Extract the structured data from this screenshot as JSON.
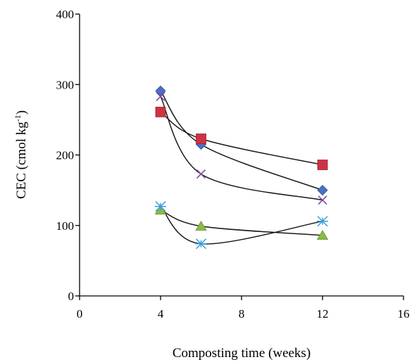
{
  "chart_data": {
    "type": "scatter",
    "title": "",
    "xlabel": "Composting time (weeks)",
    "ylabel_main": "CEC (cmol kg",
    "ylabel_sup": "-1",
    "ylabel_close": ")",
    "xlim": [
      0,
      16
    ],
    "ylim": [
      0,
      400
    ],
    "xticks": [
      0,
      4,
      8,
      12,
      16
    ],
    "yticks": [
      0,
      100,
      200,
      300,
      400
    ],
    "grid": false,
    "legend": "none",
    "x": [
      4,
      6,
      12
    ],
    "series": [
      {
        "marker": "diamond",
        "color": "#4a6fc4",
        "values": [
          291,
          215,
          150
        ]
      },
      {
        "marker": "square",
        "color": "#cc3344",
        "values": [
          261,
          223,
          186
        ]
      },
      {
        "marker": "triangle",
        "color": "#8ab84a",
        "values": [
          122,
          99,
          86
        ]
      },
      {
        "marker": "x",
        "color": "#7a4a9a",
        "values": [
          283,
          173,
          136
        ]
      },
      {
        "marker": "asterisk",
        "color": "#3aa0d8",
        "values": [
          127,
          74,
          106
        ]
      }
    ]
  }
}
